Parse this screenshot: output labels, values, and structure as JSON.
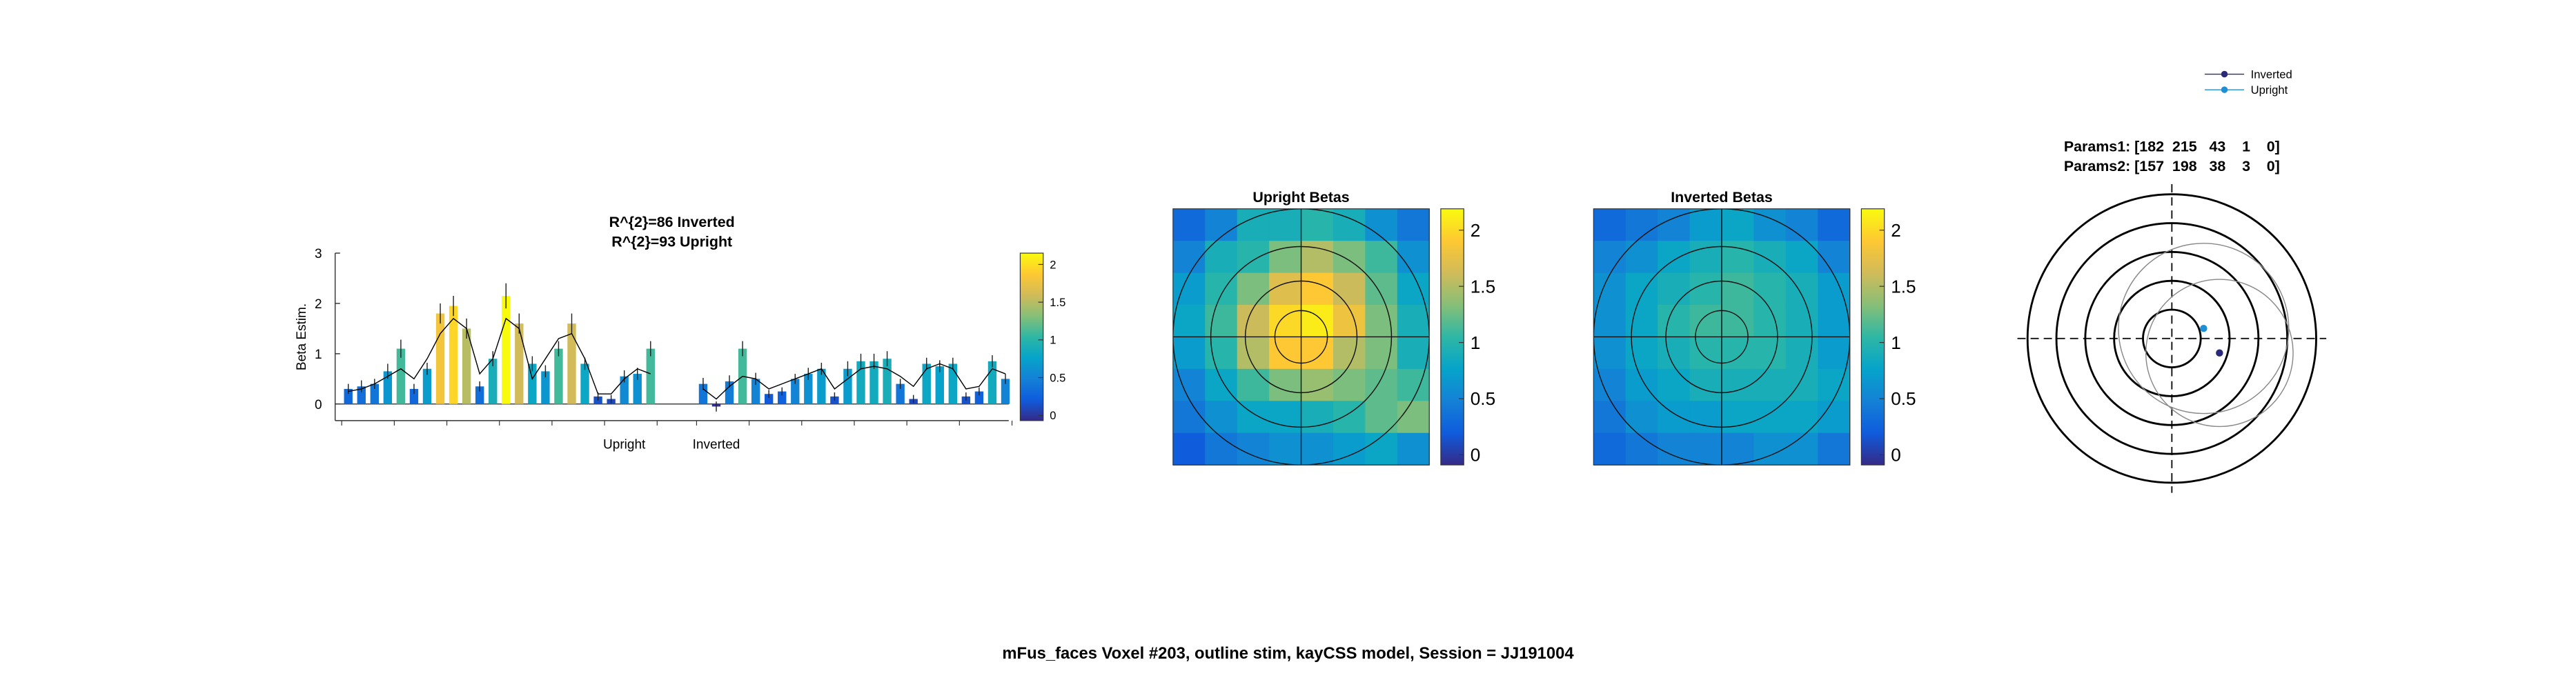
{
  "figure_title": "mFus_faces Voxel #203, outline stim, kayCSS model, Session = JJ191004",
  "chart_data": [
    {
      "type": "bar",
      "title": [
        "R^{2}=86 Inverted",
        "R^{2}=93 Upright"
      ],
      "ylabel": "Beta Estim.",
      "ylim": [
        -0.33,
        3
      ],
      "yticks": [
        0,
        1,
        2,
        3
      ],
      "clim": [
        -0.07,
        2.15
      ],
      "cticks": [
        0,
        0.5,
        1,
        1.5,
        2
      ],
      "colormap": [
        "#352a87",
        "#0f5cdd",
        "#1481d6",
        "#06a4ca",
        "#2eb7a4",
        "#87bf77",
        "#d1bb59",
        "#fec832",
        "#f9fb0e"
      ],
      "line_color": "#000000",
      "series": [
        {
          "name": "Upright",
          "values": [
            0.3,
            0.35,
            0.4,
            0.65,
            1.1,
            0.3,
            0.7,
            1.8,
            1.95,
            1.5,
            0.35,
            0.9,
            2.15,
            1.6,
            0.8,
            0.65,
            1.1,
            1.6,
            0.8,
            0.15,
            0.1,
            0.55,
            0.6,
            1.1
          ],
          "errors": [
            0.1,
            0.12,
            0.1,
            0.15,
            0.18,
            0.1,
            0.12,
            0.2,
            0.2,
            0.2,
            0.1,
            0.15,
            0.25,
            0.2,
            0.15,
            0.12,
            0.15,
            0.2,
            0.12,
            0.08,
            0.08,
            0.12,
            0.12,
            0.15
          ],
          "model": [
            0.25,
            0.3,
            0.4,
            0.55,
            0.7,
            0.5,
            0.9,
            1.4,
            1.7,
            1.5,
            0.6,
            0.9,
            1.7,
            1.5,
            0.5,
            0.9,
            1.3,
            1.4,
            0.9,
            0.2,
            0.2,
            0.5,
            0.7,
            0.6
          ]
        },
        {
          "name": "Inverted",
          "values": [
            0.4,
            -0.05,
            0.45,
            1.1,
            0.5,
            0.2,
            0.25,
            0.5,
            0.6,
            0.7,
            0.15,
            0.7,
            0.85,
            0.85,
            0.9,
            0.4,
            0.1,
            0.8,
            0.75,
            0.8,
            0.15,
            0.25,
            0.85,
            0.5
          ],
          "errors": [
            0.12,
            0.1,
            0.12,
            0.15,
            0.12,
            0.08,
            0.08,
            0.1,
            0.12,
            0.12,
            0.08,
            0.15,
            0.15,
            0.15,
            0.15,
            0.1,
            0.08,
            0.12,
            0.12,
            0.12,
            0.08,
            0.08,
            0.12,
            0.1
          ],
          "model": [
            0.3,
            0.1,
            0.35,
            0.55,
            0.5,
            0.3,
            0.4,
            0.5,
            0.6,
            0.7,
            0.3,
            0.5,
            0.7,
            0.75,
            0.7,
            0.55,
            0.35,
            0.7,
            0.8,
            0.7,
            0.3,
            0.35,
            0.7,
            0.6
          ]
        }
      ]
    },
    {
      "type": "heatmap",
      "title": "Upright Betas",
      "clim": [
        -0.09,
        2.19
      ],
      "cticks": [
        0,
        0.5,
        1,
        1.5,
        2
      ],
      "colormap": [
        "#352a87",
        "#0f5cdd",
        "#1481d6",
        "#06a4ca",
        "#2eb7a4",
        "#87bf77",
        "#d1bb59",
        "#fec832",
        "#f9fb0e"
      ],
      "values": [
        [
          0.3,
          0.5,
          0.9,
          0.9,
          1.0,
          0.9,
          0.6,
          0.4
        ],
        [
          0.5,
          0.9,
          1.0,
          1.3,
          1.5,
          1.3,
          1.1,
          0.6
        ],
        [
          0.7,
          1.0,
          1.3,
          1.7,
          1.9,
          1.6,
          1.2,
          0.8
        ],
        [
          0.8,
          1.1,
          1.6,
          2.0,
          2.1,
          1.8,
          1.3,
          0.9
        ],
        [
          0.7,
          1.0,
          1.5,
          1.9,
          1.9,
          1.5,
          1.3,
          0.9
        ],
        [
          0.5,
          0.8,
          1.1,
          1.3,
          1.4,
          1.3,
          1.2,
          1.1
        ],
        [
          0.4,
          0.6,
          0.8,
          0.8,
          0.9,
          1.0,
          1.2,
          1.3
        ],
        [
          0.2,
          0.4,
          0.5,
          0.6,
          0.6,
          0.7,
          0.8,
          0.6
        ]
      ]
    },
    {
      "type": "heatmap",
      "title": "Inverted Betas",
      "clim": [
        -0.09,
        2.19
      ],
      "cticks": [
        0,
        0.5,
        1,
        1.5,
        2
      ],
      "colormap": [
        "#352a87",
        "#0f5cdd",
        "#1481d6",
        "#06a4ca",
        "#2eb7a4",
        "#87bf77",
        "#d1bb59",
        "#fec832",
        "#f9fb0e"
      ],
      "values": [
        [
          0.3,
          0.4,
          0.5,
          0.7,
          0.8,
          0.6,
          0.5,
          0.3
        ],
        [
          0.5,
          0.6,
          0.8,
          0.9,
          1.0,
          0.9,
          0.8,
          0.5
        ],
        [
          0.6,
          0.8,
          0.9,
          1.0,
          1.1,
          1.0,
          0.9,
          0.7
        ],
        [
          0.6,
          0.8,
          1.0,
          1.1,
          1.1,
          1.0,
          0.9,
          0.7
        ],
        [
          0.6,
          0.8,
          0.9,
          1.0,
          1.0,
          1.0,
          0.9,
          0.7
        ],
        [
          0.5,
          0.7,
          0.8,
          0.9,
          0.9,
          0.9,
          0.9,
          0.8
        ],
        [
          0.4,
          0.6,
          0.7,
          0.7,
          0.8,
          0.8,
          0.8,
          0.7
        ],
        [
          0.3,
          0.4,
          0.5,
          0.5,
          0.5,
          0.6,
          0.6,
          0.4
        ]
      ]
    },
    {
      "type": "polar",
      "params": [
        "Params1: [182  215   43    1    0]",
        "Params2: [157  198   38    3    0]"
      ],
      "xlim": [
        -10.7,
        10.7
      ],
      "ylim": [
        -10.7,
        10.7
      ],
      "rings": [
        2,
        4,
        6,
        8,
        10
      ],
      "legend": "top-right",
      "series": [
        {
          "name": "Inverted",
          "color": "#2b2a7a",
          "x": [
            3.3
          ],
          "y": [
            -1.0
          ],
          "size": [
            5.1
          ]
        },
        {
          "name": "Upright",
          "color": "#1c8fd6",
          "x": [
            2.2
          ],
          "y": [
            0.7
          ],
          "size": [
            5.9
          ]
        }
      ]
    }
  ]
}
